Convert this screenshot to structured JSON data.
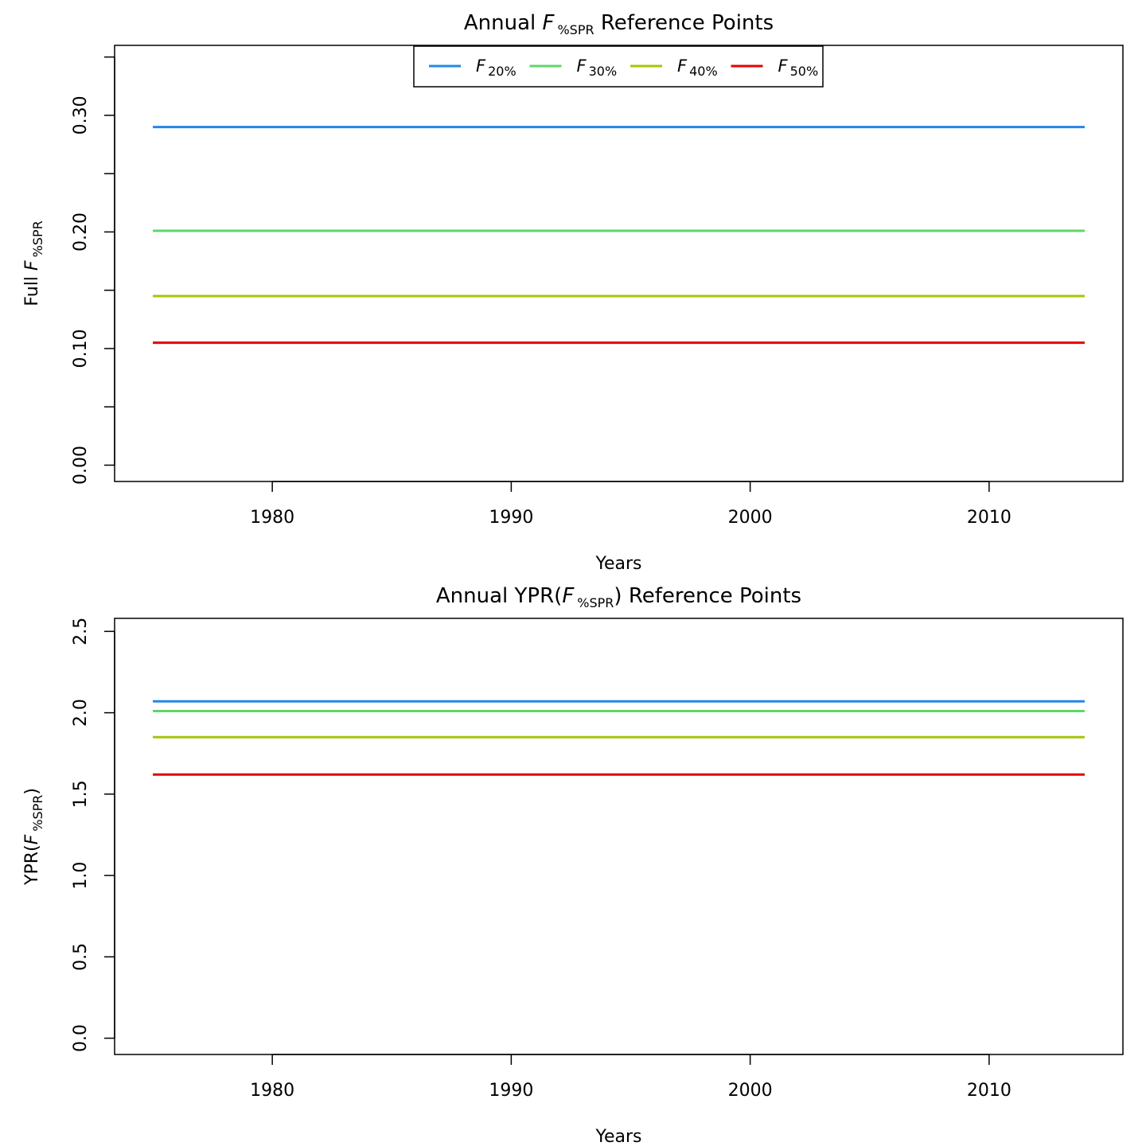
{
  "chart_data": [
    {
      "type": "line",
      "title": {
        "prefix": "Annual ",
        "var": "F",
        "sub": "%SPR",
        "suffix": " Reference Points"
      },
      "xlabel": "Years",
      "ylabel": {
        "prefix": "Full ",
        "var": "F",
        "sub": "%SPR",
        "suffix": ""
      },
      "xlim": [
        1973.4,
        2015.6
      ],
      "ylim": [
        -0.014,
        0.36
      ],
      "xticks": [
        1980,
        1990,
        2000,
        2010
      ],
      "yticks": [
        0.0,
        0.05,
        0.1,
        0.15,
        0.2,
        0.25,
        0.3,
        0.35
      ],
      "ytick_labels": [
        "0.00",
        "",
        "0.10",
        "",
        "0.20",
        "",
        "0.30",
        ""
      ],
      "x": [
        1975,
        2014
      ],
      "legend": {
        "position": "top"
      },
      "series": [
        {
          "name": "F20%",
          "var": "F",
          "sub": "20%",
          "color": "#2288e6",
          "values": [
            0.29,
            0.29
          ]
        },
        {
          "name": "F30%",
          "var": "F",
          "sub": "30%",
          "color": "#5fd66a",
          "values": [
            0.201,
            0.201
          ]
        },
        {
          "name": "F40%",
          "var": "F",
          "sub": "40%",
          "color": "#a8c30a",
          "values": [
            0.145,
            0.145
          ]
        },
        {
          "name": "F50%",
          "var": "F",
          "sub": "50%",
          "color": "#e60000",
          "values": [
            0.105,
            0.105
          ]
        }
      ],
      "grid": false
    },
    {
      "type": "line",
      "title": {
        "prefix": "Annual YPR(",
        "var": "F",
        "sub": "%SPR",
        "suffix": ") Reference Points"
      },
      "xlabel": "Years",
      "ylabel": {
        "prefix": "YPR(",
        "var": "F",
        "sub": "%SPR",
        "suffix": ")"
      },
      "xlim": [
        1973.4,
        2015.6
      ],
      "ylim": [
        -0.1,
        2.58
      ],
      "xticks": [
        1980,
        1990,
        2000,
        2010
      ],
      "yticks": [
        0.0,
        0.5,
        1.0,
        1.5,
        2.0,
        2.5
      ],
      "ytick_labels": [
        "0.0",
        "0.5",
        "1.0",
        "1.5",
        "2.0",
        "2.5"
      ],
      "x": [
        1975,
        2014
      ],
      "series": [
        {
          "color": "#2288e6",
          "values": [
            2.07,
            2.07
          ]
        },
        {
          "color": "#5fd66a",
          "values": [
            2.01,
            2.01
          ]
        },
        {
          "color": "#a8c30a",
          "values": [
            1.85,
            1.85
          ]
        },
        {
          "color": "#e60000",
          "values": [
            1.62,
            1.62
          ]
        }
      ],
      "grid": false
    }
  ]
}
